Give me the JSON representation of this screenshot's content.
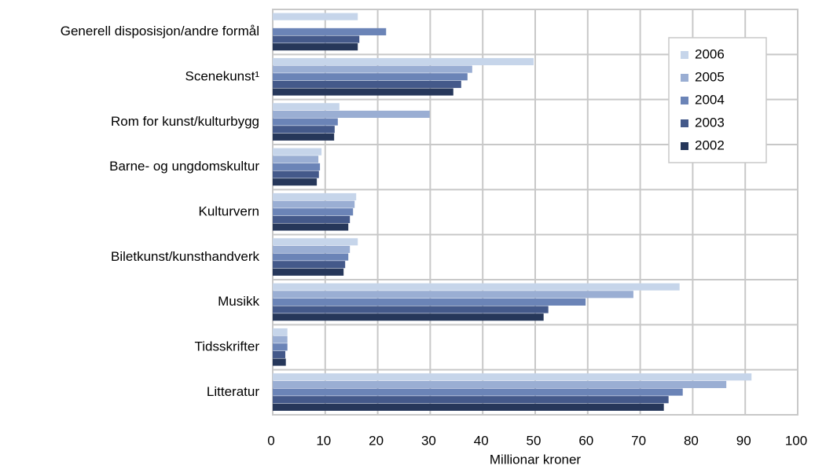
{
  "chart_data": {
    "type": "bar",
    "orientation": "horizontal",
    "xlabel": "Millionar kroner",
    "categories": [
      "Generell disposisjon/andre formål",
      "Scenekunst¹",
      "Rom for kunst/kulturbygg",
      "Barne- og ungdomskultur",
      "Kulturvern",
      "Biletkunst/kunsthandverk",
      "Musikk",
      "Tidsskrifter",
      "Litteratur"
    ],
    "series": [
      {
        "name": "2006",
        "color": "#c6d5ea",
        "values": [
          16.2,
          49.7,
          12.7,
          9.3,
          15.9,
          16.2,
          77.5,
          2.8,
          91.2
        ]
      },
      {
        "name": "2005",
        "color": "#9aaed3",
        "values": [
          0,
          38.0,
          29.9,
          8.7,
          15.6,
          14.7,
          68.7,
          2.8,
          86.4
        ]
      },
      {
        "name": "2004",
        "color": "#6b84b7",
        "values": [
          21.6,
          37.1,
          12.4,
          9.0,
          15.3,
          14.4,
          59.6,
          2.8,
          78.1
        ]
      },
      {
        "name": "2003",
        "color": "#44598a",
        "values": [
          16.5,
          35.9,
          11.8,
          8.8,
          14.7,
          13.8,
          52.5,
          2.4,
          75.4
        ]
      },
      {
        "name": "2002",
        "color": "#26375a",
        "values": [
          16.2,
          34.4,
          11.7,
          8.4,
          14.4,
          13.5,
          51.6,
          2.5,
          74.5
        ]
      }
    ],
    "xlim": [
      0,
      100
    ],
    "xticks": [
      0,
      10,
      20,
      30,
      40,
      50,
      60,
      70,
      80,
      90,
      100
    ],
    "grid": true,
    "legend": "upper right"
  }
}
